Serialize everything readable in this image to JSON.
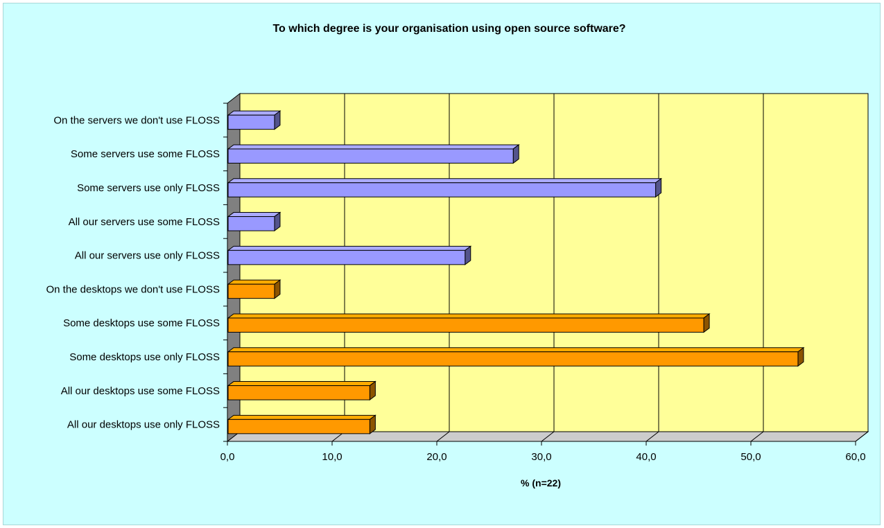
{
  "chart_data": {
    "type": "bar",
    "orientation": "horizontal",
    "title": "To which degree is your organisation using open source software?",
    "xlabel": "% (n=22)",
    "ylabel": "",
    "xlim": [
      0,
      60
    ],
    "x_ticks": [
      "0,0",
      "10,0",
      "20,0",
      "30,0",
      "40,0",
      "50,0",
      "60,0"
    ],
    "grid": "vertical",
    "legend": "none",
    "categories": [
      "On the servers we don't use FLOSS",
      "Some servers use some FLOSS",
      "Some servers use only FLOSS",
      "All our servers use some FLOSS",
      "All our servers use only FLOSS",
      "On the desktops we don't use FLOSS",
      "Some desktops use some FLOSS",
      "Some desktops use only FLOSS",
      "All our desktops use some FLOSS",
      "All our desktops use only FLOSS"
    ],
    "values": [
      4.5,
      27.3,
      40.9,
      4.5,
      22.7,
      4.5,
      45.5,
      54.5,
      13.6,
      13.6
    ],
    "bar_groups": [
      "servers",
      "servers",
      "servers",
      "servers",
      "servers",
      "desktops",
      "desktops",
      "desktops",
      "desktops",
      "desktops"
    ],
    "colors": {
      "servers": "#9999ff",
      "desktops": "#ff9900",
      "plot_background": "#ffff99",
      "chart_background": "#ccffff"
    }
  }
}
